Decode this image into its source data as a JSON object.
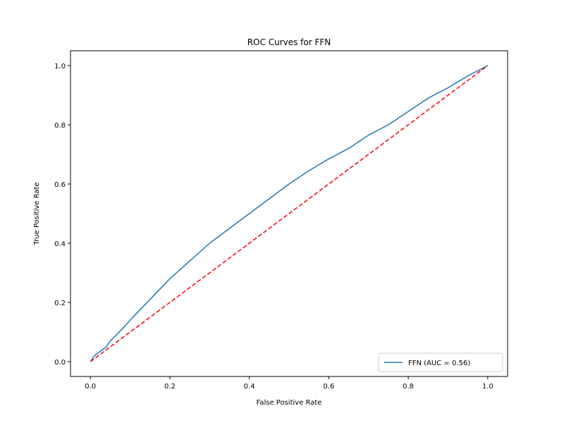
{
  "chart_data": {
    "type": "line",
    "title": "ROC Curves for FFN",
    "xlabel": "False Positive Rate",
    "ylabel": "True Positive Rate",
    "xlim": [
      -0.05,
      1.05
    ],
    "ylim": [
      -0.05,
      1.05
    ],
    "xticks": [
      0.0,
      0.2,
      0.4,
      0.6,
      0.8,
      1.0
    ],
    "yticks": [
      0.0,
      0.2,
      0.4,
      0.6,
      0.8,
      1.0
    ],
    "xtick_labels": [
      "0.0",
      "0.2",
      "0.4",
      "0.6",
      "0.8",
      "1.0"
    ],
    "ytick_labels": [
      "0.0",
      "0.2",
      "0.4",
      "0.6",
      "0.8",
      "1.0"
    ],
    "grid": false,
    "legend": {
      "placement": "lower-right",
      "entries": [
        "FFN (AUC = 0.56)"
      ]
    },
    "series": [
      {
        "name": "FFN (AUC = 0.56)",
        "color": "#1f77b4",
        "style": "solid",
        "x": [
          0.0,
          0.01,
          0.02,
          0.04,
          0.05,
          0.08,
          0.1,
          0.15,
          0.2,
          0.25,
          0.3,
          0.35,
          0.4,
          0.45,
          0.5,
          0.55,
          0.6,
          0.65,
          0.7,
          0.75,
          0.8,
          0.85,
          0.9,
          0.95,
          1.0
        ],
        "y": [
          0.0,
          0.02,
          0.03,
          0.05,
          0.07,
          0.11,
          0.14,
          0.21,
          0.28,
          0.34,
          0.4,
          0.45,
          0.5,
          0.55,
          0.6,
          0.645,
          0.685,
          0.72,
          0.765,
          0.8,
          0.845,
          0.89,
          0.925,
          0.965,
          1.0
        ]
      },
      {
        "name": "",
        "color": "#ff0000",
        "style": "dashed",
        "x": [
          0.0,
          1.0
        ],
        "y": [
          0.0,
          1.0
        ]
      }
    ]
  }
}
